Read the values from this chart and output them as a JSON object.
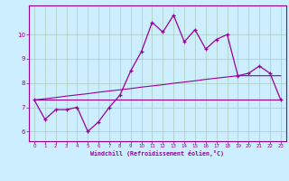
{
  "x_values": [
    0,
    1,
    2,
    3,
    4,
    5,
    6,
    7,
    8,
    9,
    10,
    11,
    12,
    13,
    14,
    15,
    16,
    17,
    18,
    19,
    20,
    21,
    22,
    23
  ],
  "y_curve": [
    7.3,
    6.5,
    6.9,
    6.9,
    7.0,
    6.0,
    6.4,
    7.0,
    7.5,
    8.5,
    9.3,
    10.5,
    10.1,
    10.8,
    9.7,
    10.2,
    9.4,
    9.8,
    10.0,
    8.3,
    8.4,
    8.7,
    8.4,
    7.3
  ],
  "y_flat": [
    7.3,
    7.3,
    7.3,
    7.3,
    7.3,
    7.3,
    7.3,
    7.3,
    7.3,
    7.3,
    7.3,
    7.3,
    7.3,
    7.3,
    7.3,
    7.3,
    7.3,
    7.3,
    7.3,
    7.3,
    7.3,
    7.3,
    7.3,
    7.3
  ],
  "y_rising": [
    7.3,
    7.35,
    7.4,
    7.46,
    7.51,
    7.56,
    7.62,
    7.67,
    7.72,
    7.77,
    7.83,
    7.88,
    7.93,
    7.99,
    8.04,
    8.09,
    8.15,
    8.2,
    8.25,
    8.3,
    8.3,
    8.3,
    8.3,
    8.3
  ],
  "line_color": "#990099",
  "bg_color": "#cceeff",
  "grid_color": "#aaccbb",
  "xlabel": "Windchill (Refroidissement éolien,°C)",
  "xlabel_color": "#990099",
  "yticks": [
    6,
    7,
    8,
    9,
    10
  ],
  "xticks": [
    0,
    1,
    2,
    3,
    4,
    5,
    6,
    7,
    8,
    9,
    10,
    11,
    12,
    13,
    14,
    15,
    16,
    17,
    18,
    19,
    20,
    21,
    22,
    23
  ],
  "ylim": [
    5.6,
    11.2
  ],
  "xlim": [
    -0.5,
    23.5
  ]
}
